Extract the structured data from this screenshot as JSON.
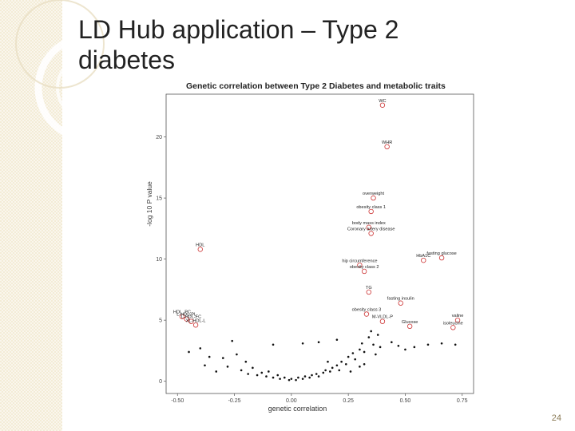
{
  "slide": {
    "title": "LD Hub application – Type 2 diabetes",
    "page_number": "24"
  },
  "colors": {
    "band": "#f3ecd6",
    "point_sig": "#cc3333",
    "point_other": "#111111"
  },
  "chart_data": {
    "type": "scatter",
    "title": "Genetic correlation between Type 2 Diabetes and metabolic traits",
    "xlabel": "genetic correlation",
    "ylabel": "-log 10 P value",
    "xlim": [
      -0.55,
      0.8
    ],
    "ylim": [
      -1,
      23.5
    ],
    "xticks": [
      -0.5,
      -0.25,
      0.0,
      0.25,
      0.5,
      0.75
    ],
    "xtick_labels": [
      "-0.50",
      "-0.25",
      "0.00",
      "0.25",
      "0.50",
      "0.75"
    ],
    "yticks": [
      0,
      5,
      10,
      15,
      20
    ],
    "ytick_labels": [
      "0",
      "5",
      "10",
      "15",
      "20"
    ],
    "grid": false,
    "labeled_points": [
      {
        "label": "WC",
        "x": 0.4,
        "y": 22.6
      },
      {
        "label": "WHR",
        "x": 0.42,
        "y": 19.2
      },
      {
        "label": "overweight",
        "x": 0.36,
        "y": 15.0
      },
      {
        "label": "obesity class 1",
        "x": 0.35,
        "y": 13.9
      },
      {
        "label": "body mass index",
        "x": 0.34,
        "y": 12.6
      },
      {
        "label": "Coronary artery disease",
        "x": 0.35,
        "y": 12.1
      },
      {
        "label": "HDL",
        "x": -0.4,
        "y": 10.8
      },
      {
        "label": "fasting glucose",
        "x": 0.66,
        "y": 10.1
      },
      {
        "label": "HbA1C",
        "x": 0.58,
        "y": 9.9
      },
      {
        "label": "hip circumference",
        "x": 0.3,
        "y": 9.5
      },
      {
        "label": "obesity class 2",
        "x": 0.32,
        "y": 9.0
      },
      {
        "label": "TG",
        "x": 0.34,
        "y": 7.3
      },
      {
        "label": "fasting insulin",
        "x": 0.48,
        "y": 6.4
      },
      {
        "label": "obesity class 3",
        "x": 0.33,
        "y": 5.5
      },
      {
        "label": "HDL_PC",
        "x": -0.48,
        "y": 5.3
      },
      {
        "label": "L-HDL-PL",
        "x": -0.46,
        "y": 5.1
      },
      {
        "label": "L-HDL-FC",
        "x": -0.44,
        "y": 4.9
      },
      {
        "label": "XL-HDL-L",
        "x": -0.42,
        "y": 4.6
      },
      {
        "label": "M-VLDL-P",
        "x": 0.4,
        "y": 4.9
      },
      {
        "label": "Glucose",
        "x": 0.52,
        "y": 4.5
      },
      {
        "label": "valine",
        "x": 0.73,
        "y": 5.0
      },
      {
        "label": "isoleucine",
        "x": 0.71,
        "y": 4.4
      }
    ],
    "other_points": [
      [
        -0.45,
        2.4
      ],
      [
        -0.4,
        2.7
      ],
      [
        -0.38,
        1.3
      ],
      [
        -0.36,
        2.0
      ],
      [
        -0.33,
        0.8
      ],
      [
        -0.3,
        1.9
      ],
      [
        -0.28,
        1.2
      ],
      [
        -0.26,
        3.3
      ],
      [
        -0.24,
        2.2
      ],
      [
        -0.22,
        0.9
      ],
      [
        -0.2,
        1.6
      ],
      [
        -0.19,
        0.6
      ],
      [
        -0.17,
        1.1
      ],
      [
        -0.15,
        0.5
      ],
      [
        -0.13,
        0.7
      ],
      [
        -0.11,
        0.4
      ],
      [
        -0.1,
        0.8
      ],
      [
        -0.08,
        0.3
      ],
      [
        -0.06,
        0.5
      ],
      [
        -0.05,
        0.2
      ],
      [
        -0.03,
        0.3
      ],
      [
        -0.01,
        0.1
      ],
      [
        0.0,
        0.2
      ],
      [
        0.02,
        0.1
      ],
      [
        0.03,
        0.3
      ],
      [
        0.05,
        0.2
      ],
      [
        0.06,
        0.4
      ],
      [
        0.08,
        0.3
      ],
      [
        0.09,
        0.5
      ],
      [
        0.11,
        0.6
      ],
      [
        0.12,
        0.4
      ],
      [
        0.14,
        0.7
      ],
      [
        0.15,
        0.9
      ],
      [
        0.17,
        0.8
      ],
      [
        0.18,
        1.1
      ],
      [
        0.2,
        1.3
      ],
      [
        0.21,
        0.9
      ],
      [
        0.22,
        1.6
      ],
      [
        0.24,
        1.4
      ],
      [
        0.25,
        2.0
      ],
      [
        0.27,
        2.3
      ],
      [
        0.28,
        1.8
      ],
      [
        0.3,
        2.6
      ],
      [
        0.31,
        3.1
      ],
      [
        0.32,
        2.4
      ],
      [
        0.34,
        3.6
      ],
      [
        0.35,
        4.1
      ],
      [
        0.36,
        3.0
      ],
      [
        0.37,
        2.2
      ],
      [
        0.38,
        3.8
      ],
      [
        0.39,
        2.8
      ],
      [
        0.44,
        3.2
      ],
      [
        0.47,
        2.9
      ],
      [
        0.5,
        2.6
      ],
      [
        0.54,
        2.8
      ],
      [
        0.6,
        3.0
      ],
      [
        0.66,
        3.1
      ],
      [
        0.72,
        3.0
      ],
      [
        0.2,
        3.4
      ],
      [
        0.12,
        3.2
      ],
      [
        0.05,
        3.1
      ],
      [
        -0.08,
        3.0
      ],
      [
        0.3,
        1.2
      ],
      [
        0.16,
        1.6
      ],
      [
        0.26,
        0.8
      ],
      [
        0.32,
        1.4
      ]
    ]
  }
}
